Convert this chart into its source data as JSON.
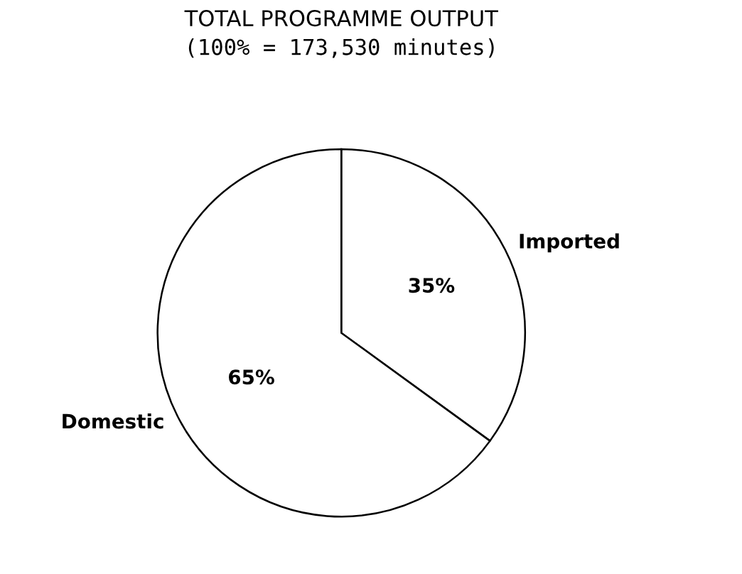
{
  "chart_data": {
    "type": "pie",
    "title": "TOTAL PROGRAMME OUTPUT",
    "subtitle": "(100% = 173,530 minutes)",
    "categories": [
      "Imported",
      "Domestic"
    ],
    "values": [
      35,
      65
    ],
    "colors": [
      "#ffffff",
      "#ffffff"
    ],
    "value_labels": [
      "35%",
      "65%"
    ],
    "legend": false
  }
}
